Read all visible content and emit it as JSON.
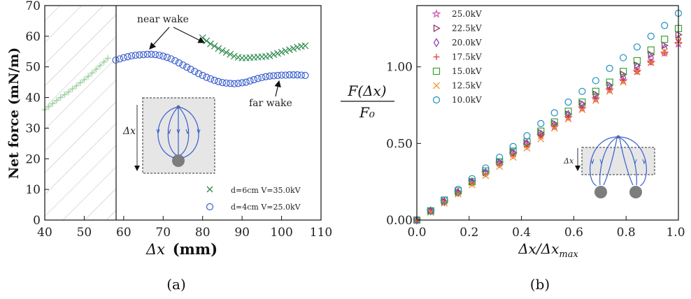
{
  "chart_data": [
    {
      "panel_label": "(a)",
      "type": "scatter",
      "xlabel_text": "Δx",
      "xlabel_unit": "(mm)",
      "ylabel": "Net force (mN/m)",
      "xlim": [
        40,
        110
      ],
      "ylim": [
        0,
        70
      ],
      "x_ticks": [
        "40",
        "50",
        "60",
        "70",
        "80",
        "90",
        "100",
        "110"
      ],
      "y_ticks": [
        "0",
        "10",
        "20",
        "30",
        "40",
        "50",
        "60",
        "70"
      ],
      "hatched_region_x": [
        40,
        58
      ],
      "legend_position": "lower-right",
      "annotations": [
        "near wake",
        "far wake"
      ],
      "inset_label": "Δx",
      "series": [
        {
          "name": "d=6cm V=35.0kV",
          "marker": "x",
          "color": "#2e8b4e",
          "x": [
            80,
            81,
            82,
            83,
            84,
            85,
            86,
            87,
            88,
            89,
            90,
            91,
            92,
            93,
            94,
            95,
            96,
            97,
            98,
            99,
            100,
            101,
            102,
            103,
            104,
            105,
            106
          ],
          "y": [
            59.5,
            58.5,
            57.5,
            56.8,
            56.0,
            55.3,
            54.7,
            54.1,
            53.5,
            53.1,
            52.9,
            52.9,
            53.0,
            53.1,
            53.2,
            53.3,
            53.4,
            53.6,
            54.0,
            54.4,
            54.8,
            55.2,
            55.6,
            56.0,
            56.4,
            56.7,
            56.9
          ]
        },
        {
          "name": "d=4cm V=25.0kV",
          "marker": "o",
          "color": "#3a5fcd",
          "x": [
            58,
            59,
            60,
            61,
            62,
            63,
            64,
            65,
            66,
            67,
            68,
            69,
            70,
            71,
            72,
            73,
            74,
            75,
            76,
            77,
            78,
            79,
            80,
            81,
            82,
            83,
            84,
            85,
            86,
            87,
            88,
            89,
            90,
            91,
            92,
            93,
            94,
            95,
            96,
            97,
            98,
            99,
            100,
            101,
            102,
            103,
            104,
            105,
            106
          ],
          "y": [
            52.2,
            52.6,
            53.0,
            53.3,
            53.6,
            53.8,
            53.9,
            54.0,
            54.1,
            54.1,
            54.0,
            53.8,
            53.5,
            53.1,
            52.6,
            52.0,
            51.3,
            50.6,
            49.9,
            49.2,
            48.5,
            47.8,
            47.2,
            46.6,
            46.1,
            45.6,
            45.2,
            44.9,
            44.7,
            44.6,
            44.5,
            44.6,
            44.8,
            45.0,
            45.4,
            45.8,
            46.2,
            46.5,
            46.8,
            47.0,
            47.1,
            47.2,
            47.3,
            47.3,
            47.4,
            47.4,
            47.4,
            47.3,
            47.2
          ]
        },
        {
          "marker": "+",
          "color": "#9fd0a0",
          "x": [
            40,
            41,
            42,
            43,
            44,
            45,
            46,
            47,
            48,
            49,
            50,
            51,
            52,
            53,
            54,
            55,
            56
          ],
          "y": [
            36.0,
            37.0,
            38.0,
            39.0,
            40.0,
            40.9,
            41.8,
            42.8,
            43.8,
            44.8,
            45.8,
            46.9,
            48.0,
            49.2,
            50.4,
            51.6,
            52.8
          ]
        }
      ]
    },
    {
      "panel_label": "(b)",
      "type": "scatter",
      "xlabel": "Δx/Δx_max",
      "ylabel_num": "F(Δx)",
      "ylabel_den": "F₀",
      "xlim": [
        0,
        1
      ],
      "ylim": [
        0,
        1.4
      ],
      "x_ticks": [
        "0.0",
        "0.2",
        "0.4",
        "0.6",
        "0.8",
        "1.0"
      ],
      "y_ticks": [
        "0.00",
        "0.50",
        "1.00"
      ],
      "legend_position": "upper-left",
      "inset_label": "Δx",
      "x": [
        0.0,
        0.053,
        0.105,
        0.158,
        0.211,
        0.263,
        0.316,
        0.368,
        0.421,
        0.474,
        0.526,
        0.579,
        0.632,
        0.684,
        0.737,
        0.789,
        0.842,
        0.895,
        0.947,
        1.0
      ],
      "series": [
        {
          "name": "25.0kV",
          "marker": "star",
          "color": "#d24fb0",
          "y": [
            0.0,
            0.06,
            0.12,
            0.18,
            0.25,
            0.31,
            0.37,
            0.43,
            0.49,
            0.55,
            0.61,
            0.67,
            0.73,
            0.79,
            0.85,
            0.91,
            0.97,
            1.03,
            1.09,
            1.15
          ]
        },
        {
          "name": "22.5kV",
          "marker": "triangle-right",
          "color": "#8b2a5a",
          "y": [
            0.0,
            0.06,
            0.12,
            0.18,
            0.25,
            0.31,
            0.38,
            0.44,
            0.5,
            0.57,
            0.63,
            0.69,
            0.76,
            0.82,
            0.88,
            0.95,
            1.01,
            1.08,
            1.14,
            1.21
          ]
        },
        {
          "name": "20.0kV",
          "marker": "diamond",
          "color": "#8a3fb8",
          "y": [
            0.0,
            0.06,
            0.12,
            0.18,
            0.25,
            0.31,
            0.37,
            0.44,
            0.5,
            0.56,
            0.62,
            0.69,
            0.75,
            0.81,
            0.87,
            0.93,
            1.0,
            1.06,
            1.12,
            1.18
          ]
        },
        {
          "name": "17.5kV",
          "marker": "plus",
          "color": "#e0302a",
          "y": [
            0.0,
            0.06,
            0.12,
            0.18,
            0.24,
            0.3,
            0.36,
            0.42,
            0.48,
            0.55,
            0.61,
            0.67,
            0.73,
            0.79,
            0.85,
            0.91,
            0.97,
            1.03,
            1.09,
            1.16
          ]
        },
        {
          "name": "15.0kV",
          "marker": "square",
          "color": "#3aa335",
          "y": [
            0.0,
            0.06,
            0.13,
            0.19,
            0.25,
            0.32,
            0.38,
            0.45,
            0.51,
            0.58,
            0.64,
            0.71,
            0.77,
            0.84,
            0.9,
            0.97,
            1.04,
            1.11,
            1.18,
            1.25
          ]
        },
        {
          "name": "12.5kV",
          "marker": "x",
          "color": "#f08c1a",
          "y": [
            0.0,
            0.05,
            0.11,
            0.17,
            0.23,
            0.29,
            0.35,
            0.41,
            0.47,
            0.53,
            0.6,
            0.66,
            0.72,
            0.78,
            0.84,
            0.9,
            0.97,
            1.03,
            1.1,
            1.17
          ]
        },
        {
          "name": "10.0kV",
          "marker": "circle",
          "color": "#1f8fbf",
          "y": [
            0.0,
            0.06,
            0.13,
            0.2,
            0.27,
            0.34,
            0.41,
            0.48,
            0.55,
            0.63,
            0.7,
            0.77,
            0.84,
            0.91,
            0.99,
            1.06,
            1.13,
            1.2,
            1.27,
            1.35
          ]
        }
      ]
    }
  ]
}
